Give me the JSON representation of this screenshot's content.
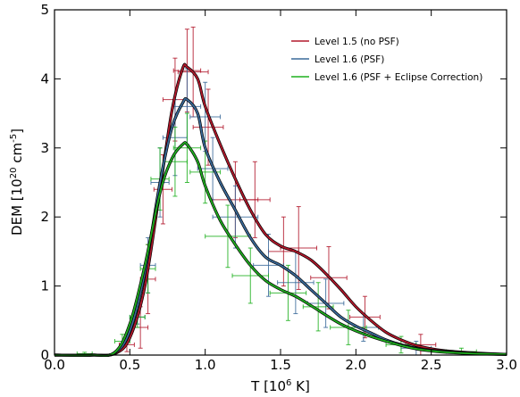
{
  "chart_data": {
    "type": "line",
    "xlabel": "T [10",
    "xlabel_sup": "6",
    "xlabel_tail": " K]",
    "ylabel": "DEM [10",
    "ylabel_sup": "20",
    "ylabel_mid": " cm",
    "ylabel_sup2": "-5",
    "ylabel_tail": "]",
    "xlim": [
      0.0,
      3.0
    ],
    "ylim": [
      0,
      5
    ],
    "xticks": [
      0.0,
      0.5,
      1.0,
      1.5,
      2.0,
      2.5,
      3.0
    ],
    "xtick_labels": [
      "0.0",
      "0.5",
      "1.0",
      "1.5",
      "2.0",
      "2.5",
      "3.0"
    ],
    "yticks": [
      0,
      1,
      2,
      3,
      4,
      5
    ],
    "ytick_labels": [
      "0",
      "1",
      "2",
      "3",
      "4",
      "5"
    ],
    "legend_position": "top-right",
    "series": [
      {
        "name": "Level 1.5 (no PSF)",
        "color": "#b2182b",
        "curve": [
          [
            0.0,
            0.0
          ],
          [
            0.25,
            0.0
          ],
          [
            0.4,
            0.02
          ],
          [
            0.5,
            0.25
          ],
          [
            0.6,
            1.0
          ],
          [
            0.7,
            2.4
          ],
          [
            0.78,
            3.55
          ],
          [
            0.85,
            4.15
          ],
          [
            0.88,
            4.17
          ],
          [
            0.95,
            4.0
          ],
          [
            1.0,
            3.6
          ],
          [
            1.1,
            3.05
          ],
          [
            1.2,
            2.55
          ],
          [
            1.3,
            2.1
          ],
          [
            1.4,
            1.75
          ],
          [
            1.5,
            1.58
          ],
          [
            1.6,
            1.5
          ],
          [
            1.7,
            1.38
          ],
          [
            1.8,
            1.18
          ],
          [
            1.9,
            0.95
          ],
          [
            2.0,
            0.7
          ],
          [
            2.1,
            0.5
          ],
          [
            2.2,
            0.33
          ],
          [
            2.3,
            0.22
          ],
          [
            2.4,
            0.14
          ],
          [
            2.5,
            0.09
          ],
          [
            2.6,
            0.06
          ],
          [
            2.8,
            0.03
          ],
          [
            3.0,
            0.01
          ]
        ],
        "points": [
          {
            "x": 0.48,
            "y": 0.15,
            "xerr": 0.05,
            "yerr": 0.1
          },
          {
            "x": 0.57,
            "y": 0.4,
            "xerr": 0.05,
            "yerr": 0.3
          },
          {
            "x": 0.62,
            "y": 1.1,
            "xerr": 0.05,
            "yerr": 0.5
          },
          {
            "x": 0.72,
            "y": 2.4,
            "xerr": 0.06,
            "yerr": 0.5
          },
          {
            "x": 0.8,
            "y": 3.7,
            "xerr": 0.08,
            "yerr": 0.6
          },
          {
            "x": 0.88,
            "y": 4.12,
            "xerr": 0.09,
            "yerr": 0.6
          },
          {
            "x": 0.92,
            "y": 4.1,
            "xerr": 0.1,
            "yerr": 0.65
          },
          {
            "x": 1.02,
            "y": 3.3,
            "xerr": 0.1,
            "yerr": 0.55
          },
          {
            "x": 1.2,
            "y": 2.25,
            "xerr": 0.15,
            "yerr": 0.55
          },
          {
            "x": 1.33,
            "y": 2.25,
            "xerr": 0.1,
            "yerr": 0.55
          },
          {
            "x": 1.52,
            "y": 1.5,
            "xerr": 0.1,
            "yerr": 0.5
          },
          {
            "x": 1.62,
            "y": 1.55,
            "xerr": 0.12,
            "yerr": 0.6
          },
          {
            "x": 1.82,
            "y": 1.12,
            "xerr": 0.12,
            "yerr": 0.45
          },
          {
            "x": 2.06,
            "y": 0.55,
            "xerr": 0.1,
            "yerr": 0.3
          },
          {
            "x": 2.43,
            "y": 0.15,
            "xerr": 0.1,
            "yerr": 0.15
          }
        ]
      },
      {
        "name": "Level 1.6 (PSF)",
        "color": "#3a6a9a",
        "curve": [
          [
            0.0,
            0.0
          ],
          [
            0.25,
            0.0
          ],
          [
            0.4,
            0.03
          ],
          [
            0.5,
            0.35
          ],
          [
            0.6,
            1.2
          ],
          [
            0.7,
            2.5
          ],
          [
            0.78,
            3.3
          ],
          [
            0.85,
            3.65
          ],
          [
            0.88,
            3.7
          ],
          [
            0.95,
            3.5
          ],
          [
            1.0,
            3.0
          ],
          [
            1.1,
            2.5
          ],
          [
            1.2,
            2.1
          ],
          [
            1.3,
            1.7
          ],
          [
            1.4,
            1.42
          ],
          [
            1.5,
            1.3
          ],
          [
            1.6,
            1.15
          ],
          [
            1.7,
            0.95
          ],
          [
            1.8,
            0.75
          ],
          [
            1.9,
            0.55
          ],
          [
            2.0,
            0.42
          ],
          [
            2.1,
            0.32
          ],
          [
            2.2,
            0.22
          ],
          [
            2.3,
            0.15
          ],
          [
            2.4,
            0.1
          ],
          [
            2.5,
            0.07
          ],
          [
            2.6,
            0.05
          ],
          [
            2.8,
            0.02
          ],
          [
            3.0,
            0.01
          ]
        ],
        "points": [
          {
            "x": 0.55,
            "y": 0.55,
            "xerr": 0.05,
            "yerr": 0.1
          },
          {
            "x": 0.62,
            "y": 1.3,
            "xerr": 0.05,
            "yerr": 0.4
          },
          {
            "x": 0.7,
            "y": 2.5,
            "xerr": 0.06,
            "yerr": 0.5
          },
          {
            "x": 0.8,
            "y": 3.15,
            "xerr": 0.08,
            "yerr": 0.55
          },
          {
            "x": 0.88,
            "y": 3.6,
            "xerr": 0.09,
            "yerr": 0.55
          },
          {
            "x": 1.0,
            "y": 3.45,
            "xerr": 0.1,
            "yerr": 0.5
          },
          {
            "x": 1.05,
            "y": 2.7,
            "xerr": 0.1,
            "yerr": 0.45
          },
          {
            "x": 1.2,
            "y": 2.0,
            "xerr": 0.15,
            "yerr": 0.45
          },
          {
            "x": 1.42,
            "y": 1.3,
            "xerr": 0.1,
            "yerr": 0.45
          },
          {
            "x": 1.6,
            "y": 1.05,
            "xerr": 0.12,
            "yerr": 0.45
          },
          {
            "x": 1.8,
            "y": 0.75,
            "xerr": 0.12,
            "yerr": 0.35
          },
          {
            "x": 2.05,
            "y": 0.4,
            "xerr": 0.1,
            "yerr": 0.2
          },
          {
            "x": 2.4,
            "y": 0.1,
            "xerr": 0.1,
            "yerr": 0.1
          }
        ]
      },
      {
        "name": "Level 1.6 (PSF + Eclipse Correction)",
        "color": "#1fb01f",
        "curve": [
          [
            0.0,
            0.0
          ],
          [
            0.25,
            0.0
          ],
          [
            0.4,
            0.04
          ],
          [
            0.5,
            0.45
          ],
          [
            0.6,
            1.3
          ],
          [
            0.7,
            2.35
          ],
          [
            0.78,
            2.85
          ],
          [
            0.85,
            3.05
          ],
          [
            0.88,
            3.05
          ],
          [
            0.95,
            2.8
          ],
          [
            1.0,
            2.45
          ],
          [
            1.1,
            1.95
          ],
          [
            1.2,
            1.6
          ],
          [
            1.3,
            1.3
          ],
          [
            1.4,
            1.08
          ],
          [
            1.5,
            0.95
          ],
          [
            1.6,
            0.85
          ],
          [
            1.7,
            0.72
          ],
          [
            1.8,
            0.58
          ],
          [
            1.9,
            0.45
          ],
          [
            2.0,
            0.35
          ],
          [
            2.1,
            0.27
          ],
          [
            2.2,
            0.2
          ],
          [
            2.3,
            0.14
          ],
          [
            2.4,
            0.09
          ],
          [
            2.5,
            0.06
          ],
          [
            2.6,
            0.04
          ],
          [
            2.8,
            0.02
          ],
          [
            3.0,
            0.01
          ]
        ],
        "points": [
          {
            "x": 0.2,
            "y": 0.02,
            "xerr": 0.05,
            "yerr": 0.02
          },
          {
            "x": 0.45,
            "y": 0.2,
            "xerr": 0.05,
            "yerr": 0.1
          },
          {
            "x": 0.55,
            "y": 0.55,
            "xerr": 0.05,
            "yerr": 0.15
          },
          {
            "x": 0.62,
            "y": 1.25,
            "xerr": 0.05,
            "yerr": 0.35
          },
          {
            "x": 0.7,
            "y": 2.55,
            "xerr": 0.06,
            "yerr": 0.45
          },
          {
            "x": 0.8,
            "y": 2.8,
            "xerr": 0.08,
            "yerr": 0.5
          },
          {
            "x": 0.88,
            "y": 3.0,
            "xerr": 0.09,
            "yerr": 0.5
          },
          {
            "x": 1.0,
            "y": 2.65,
            "xerr": 0.1,
            "yerr": 0.45
          },
          {
            "x": 1.15,
            "y": 1.72,
            "xerr": 0.15,
            "yerr": 0.45
          },
          {
            "x": 1.3,
            "y": 1.15,
            "xerr": 0.12,
            "yerr": 0.4
          },
          {
            "x": 1.55,
            "y": 0.9,
            "xerr": 0.12,
            "yerr": 0.4
          },
          {
            "x": 1.75,
            "y": 0.7,
            "xerr": 0.1,
            "yerr": 0.35
          },
          {
            "x": 1.95,
            "y": 0.4,
            "xerr": 0.12,
            "yerr": 0.25
          },
          {
            "x": 2.3,
            "y": 0.15,
            "xerr": 0.1,
            "yerr": 0.12
          },
          {
            "x": 2.7,
            "y": 0.05,
            "xerr": 0.1,
            "yerr": 0.05
          }
        ]
      }
    ]
  }
}
